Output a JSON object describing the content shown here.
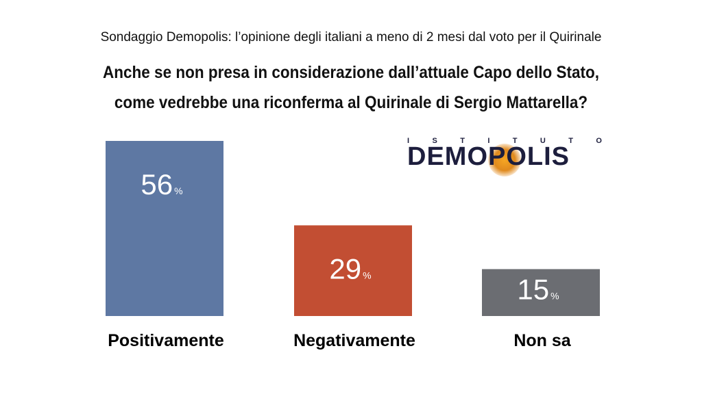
{
  "header": {
    "subtitle": "Sondaggio Demopolis: l’opinione degli italiani a meno di 2 mesi dal voto per il Quirinale",
    "title_line1": "Anche se non presa in considerazione dall’attuale Capo dello Stato,",
    "title_line2": "come vedrebbe una riconferma al Quirinale di Sergio Mattarella?"
  },
  "logo": {
    "top_letters": [
      "I",
      "S",
      "T",
      "I",
      "T",
      "U",
      "T",
      "O"
    ],
    "name": "DEMOPOLIS"
  },
  "chart_data": {
    "type": "bar",
    "categories": [
      "Positivamente",
      "Negativamente",
      "Non sa"
    ],
    "values": [
      56,
      29,
      15
    ],
    "unit": "%",
    "colors": [
      "#5e78a3",
      "#c24e33",
      "#6b6d72"
    ],
    "ylim": [
      0,
      56
    ],
    "grid": false
  }
}
